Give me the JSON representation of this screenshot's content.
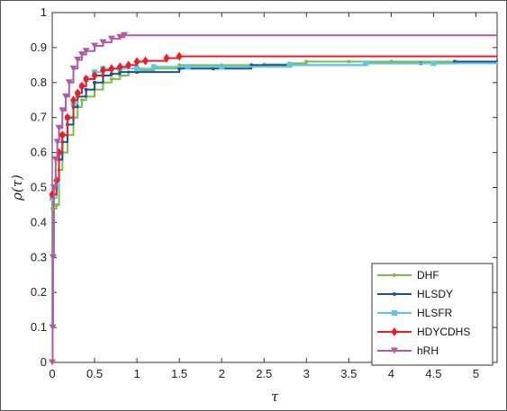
{
  "chart_data": {
    "type": "line",
    "title": "",
    "xlabel": "τ",
    "ylabel": "ρ(τ)",
    "xlim": [
      0,
      5.25
    ],
    "ylim": [
      0,
      1
    ],
    "xticks": [
      "0",
      "0.5",
      "1",
      "1.5",
      "2",
      "2.5",
      "3",
      "3.5",
      "4",
      "4.5",
      "5"
    ],
    "yticks": [
      "0",
      "0.1",
      "0.2",
      "0.3",
      "0.4",
      "0.5",
      "0.6",
      "0.7",
      "0.8",
      "0.9",
      "1"
    ],
    "grid": false,
    "legend_position": "bottom-right",
    "series": [
      {
        "name": "DHF",
        "color": "#7ac143",
        "marker": "dot",
        "points": [
          [
            0,
            0.44
          ],
          [
            0.05,
            0.45
          ],
          [
            0.08,
            0.55
          ],
          [
            0.12,
            0.6
          ],
          [
            0.18,
            0.65
          ],
          [
            0.25,
            0.7
          ],
          [
            0.3,
            0.73
          ],
          [
            0.35,
            0.75
          ],
          [
            0.4,
            0.76
          ],
          [
            0.5,
            0.78
          ],
          [
            0.6,
            0.8
          ],
          [
            0.7,
            0.81
          ],
          [
            0.8,
            0.82
          ],
          [
            0.9,
            0.83
          ],
          [
            1.0,
            0.835
          ],
          [
            1.2,
            0.84
          ],
          [
            1.5,
            0.85
          ],
          [
            2.0,
            0.85
          ],
          [
            2.5,
            0.852
          ],
          [
            2.8,
            0.855
          ],
          [
            3.0,
            0.86
          ],
          [
            3.5,
            0.86
          ],
          [
            4.0,
            0.86
          ],
          [
            5.25,
            0.86
          ]
        ]
      },
      {
        "name": "HLSDY",
        "color": "#1f4e9c",
        "marker": "dot",
        "points": [
          [
            0,
            0.48
          ],
          [
            0.05,
            0.5
          ],
          [
            0.08,
            0.58
          ],
          [
            0.12,
            0.63
          ],
          [
            0.18,
            0.68
          ],
          [
            0.25,
            0.73
          ],
          [
            0.3,
            0.76
          ],
          [
            0.4,
            0.78
          ],
          [
            0.5,
            0.8
          ],
          [
            0.6,
            0.82
          ],
          [
            0.7,
            0.825
          ],
          [
            0.8,
            0.83
          ],
          [
            1.0,
            0.83
          ],
          [
            1.5,
            0.84
          ],
          [
            1.9,
            0.84
          ],
          [
            2.35,
            0.85
          ],
          [
            2.8,
            0.85
          ],
          [
            3.7,
            0.855
          ],
          [
            4.35,
            0.855
          ],
          [
            4.75,
            0.86
          ],
          [
            5.25,
            0.865
          ]
        ]
      },
      {
        "name": "HLSFR",
        "color": "#5bc8e6",
        "marker": "square",
        "points": [
          [
            0,
            0.47
          ],
          [
            0.05,
            0.5
          ],
          [
            0.08,
            0.6
          ],
          [
            0.12,
            0.65
          ],
          [
            0.18,
            0.7
          ],
          [
            0.25,
            0.74
          ],
          [
            0.3,
            0.77
          ],
          [
            0.35,
            0.79
          ],
          [
            0.4,
            0.81
          ],
          [
            0.5,
            0.83
          ],
          [
            0.6,
            0.84
          ],
          [
            0.8,
            0.84
          ],
          [
            1.0,
            0.84
          ],
          [
            1.2,
            0.845
          ],
          [
            1.6,
            0.845
          ],
          [
            2.0,
            0.845
          ],
          [
            2.8,
            0.85
          ],
          [
            3.7,
            0.855
          ],
          [
            4.5,
            0.855
          ],
          [
            5.25,
            0.86
          ]
        ]
      },
      {
        "name": "HDYCDHS",
        "color": "#ee1c24",
        "marker": "diamond",
        "points": [
          [
            0,
            0.48
          ],
          [
            0.05,
            0.52
          ],
          [
            0.08,
            0.6
          ],
          [
            0.12,
            0.65
          ],
          [
            0.18,
            0.7
          ],
          [
            0.25,
            0.75
          ],
          [
            0.3,
            0.77
          ],
          [
            0.35,
            0.79
          ],
          [
            0.4,
            0.81
          ],
          [
            0.5,
            0.82
          ],
          [
            0.6,
            0.835
          ],
          [
            0.7,
            0.84
          ],
          [
            0.8,
            0.845
          ],
          [
            0.9,
            0.85
          ],
          [
            1.0,
            0.86
          ],
          [
            1.1,
            0.862
          ],
          [
            1.35,
            0.87
          ],
          [
            1.5,
            0.875
          ],
          [
            5.25,
            0.875
          ]
        ]
      },
      {
        "name": "hRH",
        "color": "#b25aa6",
        "marker": "triangle-down",
        "points": [
          [
            0,
            0
          ],
          [
            0.005,
            0.1
          ],
          [
            0.01,
            0.3
          ],
          [
            0.02,
            0.5
          ],
          [
            0.04,
            0.58
          ],
          [
            0.06,
            0.63
          ],
          [
            0.08,
            0.67
          ],
          [
            0.12,
            0.72
          ],
          [
            0.16,
            0.76
          ],
          [
            0.2,
            0.8
          ],
          [
            0.25,
            0.84
          ],
          [
            0.3,
            0.865
          ],
          [
            0.35,
            0.88
          ],
          [
            0.4,
            0.89
          ],
          [
            0.5,
            0.905
          ],
          [
            0.6,
            0.915
          ],
          [
            0.7,
            0.925
          ],
          [
            0.8,
            0.93
          ],
          [
            0.85,
            0.935
          ],
          [
            5.25,
            0.935
          ]
        ]
      }
    ]
  }
}
